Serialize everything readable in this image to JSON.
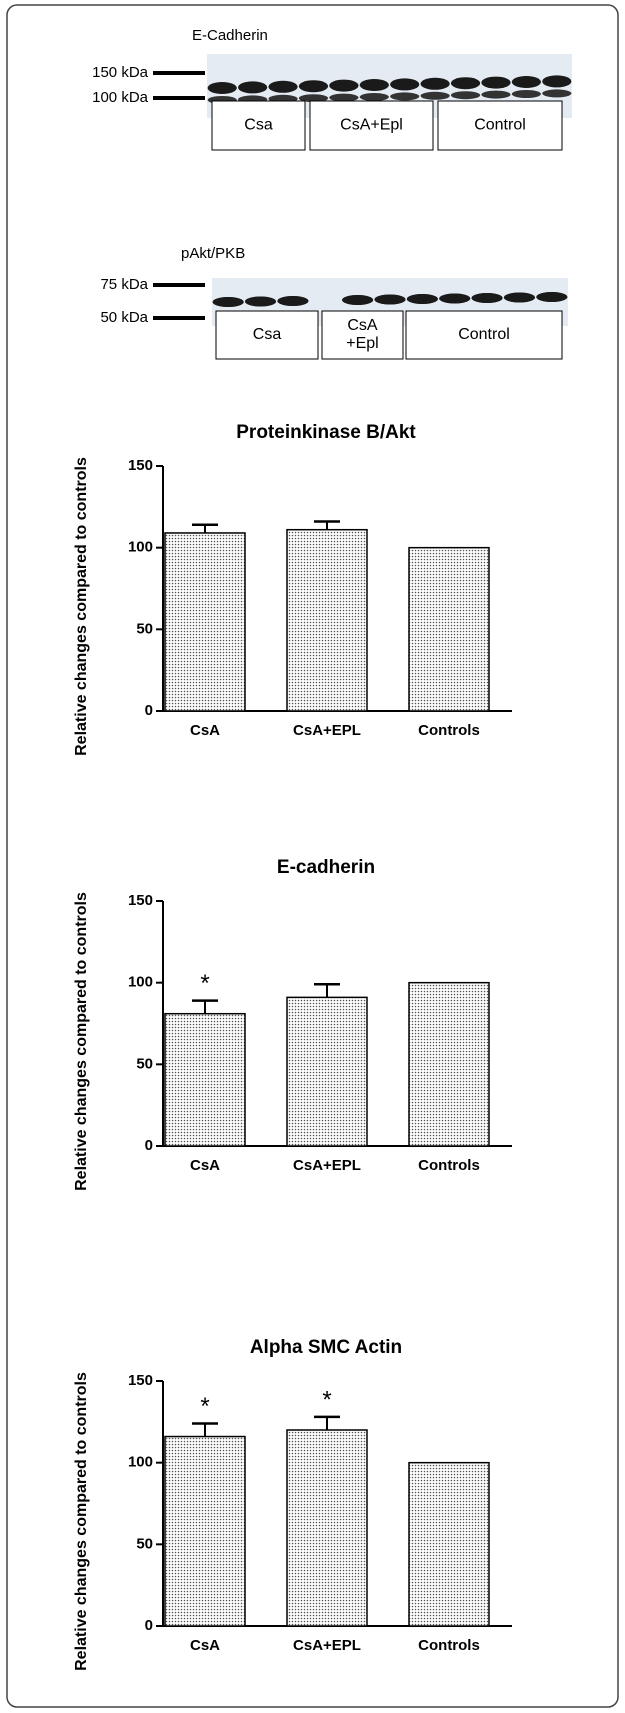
{
  "blots": [
    {
      "title": "E-Cadherin",
      "markers": [
        "150 kDa",
        "100 kDa"
      ],
      "groups": [
        [
          "Csa"
        ],
        [
          "CsA+Epl"
        ],
        [
          "Control"
        ]
      ]
    },
    {
      "title": "pAkt/PKB",
      "markers": [
        "75 kDa",
        "50 kDa"
      ],
      "groups": [
        [
          "Csa"
        ],
        [
          "CsA",
          "+Epl"
        ],
        [
          "Control"
        ]
      ]
    }
  ],
  "chart_data": [
    {
      "type": "bar",
      "title": "Proteinkinase B/Akt",
      "y_label": "Relative changes compared to controls",
      "categories": [
        "CsA",
        "CsA+EPL",
        "Controls"
      ],
      "values": [
        109,
        111,
        100
      ],
      "errors": [
        5,
        5,
        0
      ],
      "annotations": [
        null,
        null,
        null
      ],
      "color": "#555555",
      "ylim": [
        0,
        150
      ],
      "yticks": [
        0,
        50,
        100,
        150
      ]
    },
    {
      "type": "bar",
      "title": "E-cadherin",
      "y_label": "Relative changes compared to controls",
      "categories": [
        "CsA",
        "CsA+EPL",
        "Controls"
      ],
      "values": [
        81,
        91,
        100
      ],
      "errors": [
        8,
        8,
        0
      ],
      "annotations": [
        "*",
        null,
        null
      ],
      "color": "#555555",
      "ylim": [
        0,
        150
      ],
      "yticks": [
        0,
        50,
        100,
        150
      ]
    },
    {
      "type": "bar",
      "title": "Alpha SMC Actin",
      "y_label": "Relative changes compared to controls",
      "categories": [
        "CsA",
        "CsA+EPL",
        "Controls"
      ],
      "values": [
        116,
        120,
        100
      ],
      "errors": [
        8,
        8,
        0
      ],
      "annotations": [
        "*",
        "*",
        null
      ],
      "color": "#555555",
      "ylim": [
        0,
        150
      ],
      "yticks": [
        0,
        50,
        100,
        150
      ]
    }
  ]
}
